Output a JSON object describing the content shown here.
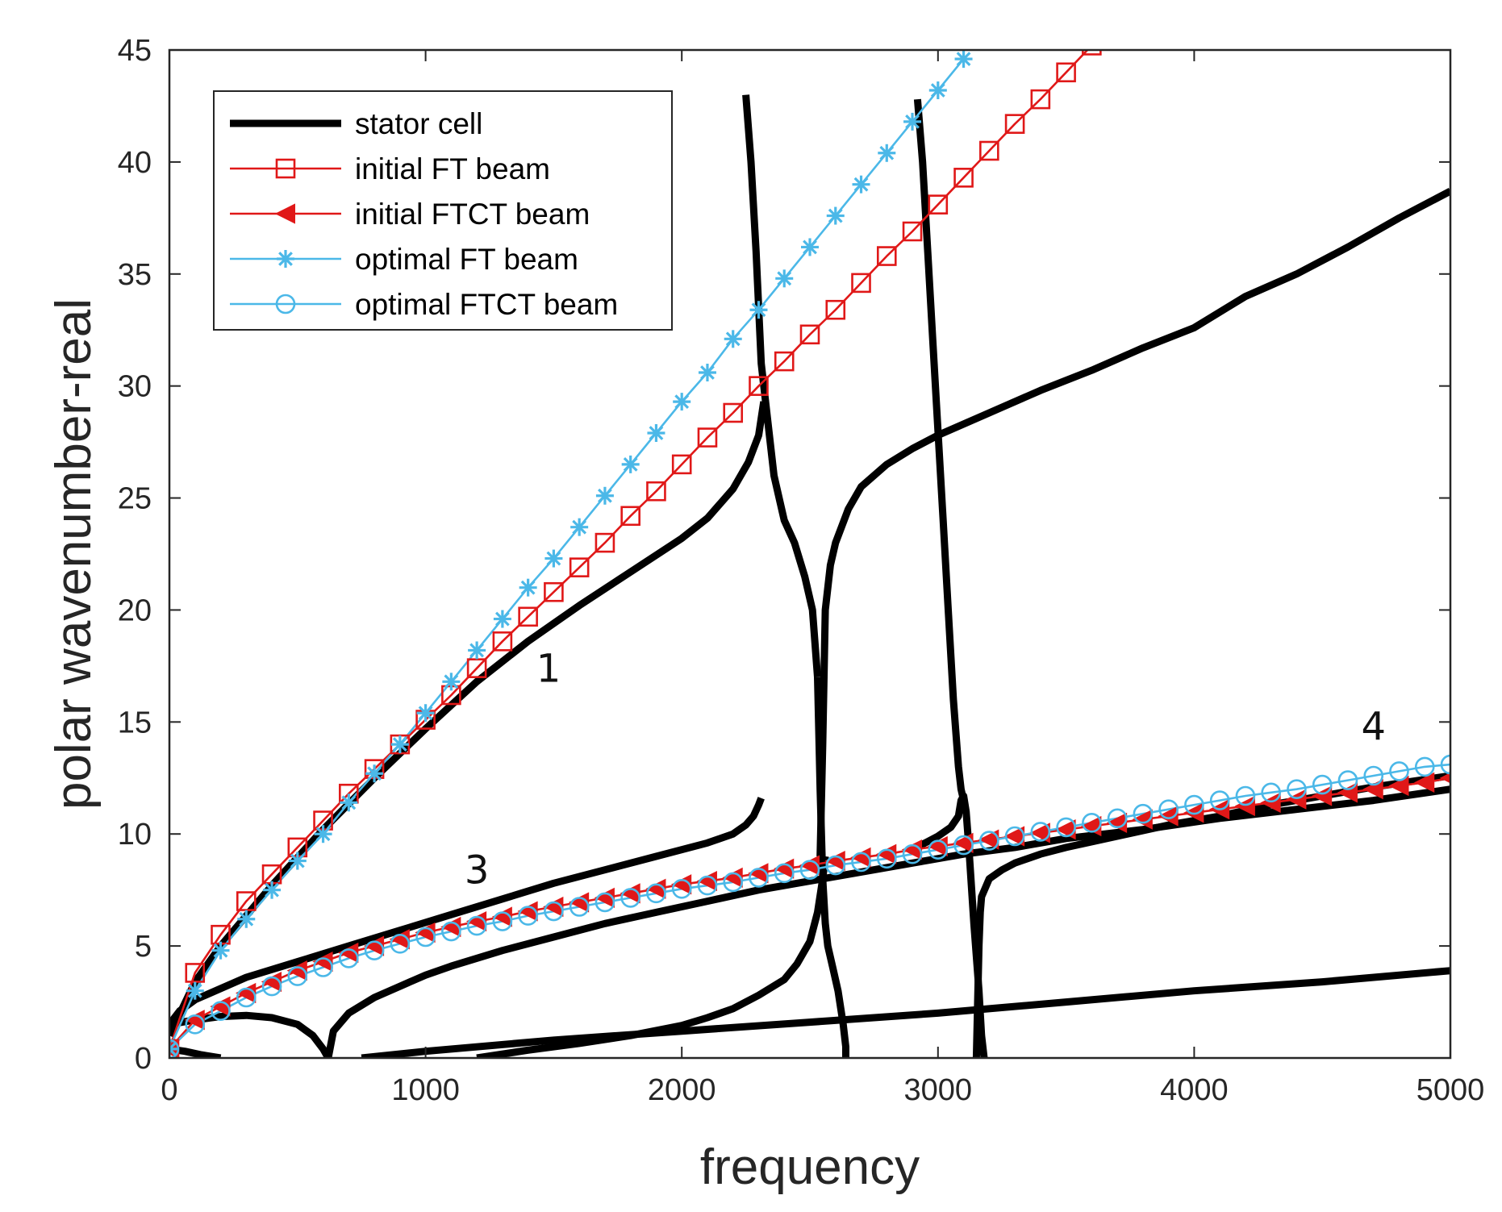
{
  "chart_data": {
    "type": "line",
    "title": "",
    "xlabel": "frequency",
    "ylabel": "polar wavenumber-real",
    "xlim": [
      0,
      5000
    ],
    "ylim": [
      0,
      45
    ],
    "xticks": [
      0,
      1000,
      2000,
      3000,
      4000,
      5000
    ],
    "yticks": [
      0,
      5,
      10,
      15,
      20,
      25,
      30,
      35,
      40,
      45
    ],
    "grid": false,
    "legend_position": "top-left",
    "colors": {
      "black": "#000000",
      "red": "#e01818",
      "blue": "#4bb8e8",
      "axis": "#262626"
    },
    "series": [
      {
        "name": "stator cell",
        "color": "#000000",
        "marker": "none",
        "branches": [
          {
            "x": [
              0,
              60,
              120,
              200
            ],
            "y": [
              0.4,
              0.3,
              0.15,
              0
            ]
          },
          {
            "x": [
              0,
              40,
              100,
              300,
              500,
              700,
              900,
              1100,
              1300,
              1500,
              1700,
              1900,
              2100,
              2200,
              2250,
              2280,
              2300,
              2310
            ],
            "y": [
              1.5,
              2.1,
              2.6,
              3.6,
              4.3,
              5.0,
              5.7,
              6.4,
              7.1,
              7.8,
              8.4,
              9.0,
              9.6,
              10.0,
              10.4,
              10.8,
              11.3,
              11.6
            ]
          },
          {
            "x": [
              0,
              100,
              200,
              300,
              400,
              500,
              560,
              600,
              620
            ],
            "y": [
              1.5,
              1.7,
              1.85,
              1.9,
              1.8,
              1.5,
              1.0,
              0.4,
              0
            ]
          },
          {
            "x": [
              620,
              640,
              700,
              800,
              900,
              1000,
              1100,
              1300,
              1500,
              1700,
              1900,
              2100,
              2300,
              2500,
              2700,
              2900,
              3100,
              3300,
              3500,
              3800,
              4100,
              4400,
              4700,
              5000
            ],
            "y": [
              0,
              1.2,
              2.0,
              2.7,
              3.2,
              3.7,
              4.1,
              4.8,
              5.4,
              6.0,
              6.5,
              7.0,
              7.5,
              7.9,
              8.3,
              8.7,
              9.1,
              9.4,
              9.8,
              10.2,
              10.7,
              11.1,
              11.5,
              12.0
            ]
          },
          {
            "x": [
              0,
              100,
              200,
              400,
              600,
              800,
              1000,
              1200,
              1400,
              1600,
              1800,
              2000,
              2100,
              2200,
              2260,
              2300,
              2320
            ],
            "y": [
              1.0,
              3.4,
              5.0,
              7.7,
              10.2,
              12.5,
              14.7,
              16.8,
              18.6,
              20.2,
              21.7,
              23.2,
              24.1,
              25.4,
              26.6,
              27.8,
              29.3
            ]
          },
          {
            "x": [
              2250,
              2270,
              2290,
              2310,
              2330,
              2360,
              2400,
              2440,
              2480,
              2510,
              2530
            ],
            "y": [
              43,
              40,
              36,
              31,
              29,
              26,
              24,
              23,
              21.5,
              20,
              17
            ]
          },
          {
            "x": [
              2530,
              2540,
              2550,
              2560,
              2570,
              2590,
              2610,
              2630,
              2640,
              2640
            ],
            "y": [
              17,
              12,
              8,
              6,
              5,
              4,
              3,
              1.5,
              0.5,
              0
            ]
          },
          {
            "x": [
              1200,
              1400,
              1600,
              1800,
              2000,
              2100,
              2200,
              2300,
              2400,
              2450,
              2500,
              2530,
              2550,
              2560
            ],
            "y": [
              0,
              0.35,
              0.65,
              1.0,
              1.45,
              1.8,
              2.2,
              2.8,
              3.5,
              4.2,
              5.2,
              6.5,
              8.0,
              9.0
            ]
          },
          {
            "x": [
              750,
              1000,
              1500,
              2000,
              2500,
              3000,
              3500,
              4000,
              4500,
              5000
            ],
            "y": [
              0,
              0.3,
              0.8,
              1.2,
              1.6,
              2.0,
              2.5,
              3.0,
              3.4,
              3.9
            ]
          },
          {
            "x": [
              2540,
              2550,
              2560,
              2580,
              2600,
              2650,
              2700,
              2800,
              2900,
              3000,
              3200,
              3400,
              3600,
              3800,
              4000,
              4200,
              4400,
              4600,
              4800,
              5000
            ],
            "y": [
              9,
              14,
              20,
              22,
              23,
              24.5,
              25.5,
              26.5,
              27.2,
              27.8,
              28.8,
              29.8,
              30.7,
              31.7,
              32.6,
              34.0,
              35.0,
              36.2,
              37.5,
              38.7
            ]
          },
          {
            "x": [
              2920,
              2940,
              2960,
              2980,
              3000,
              3020,
              3040,
              3060,
              3080,
              3090,
              3100
            ],
            "y": [
              42.8,
              40,
              36,
              32,
              28,
              24,
              20,
              16,
              13,
              12,
              11.5
            ]
          },
          {
            "x": [
              2900,
              2950,
              3000,
              3050,
              3080,
              3090,
              3100,
              3110,
              3120,
              3140,
              3160,
              3170,
              3180
            ],
            "y": [
              9.3,
              9.6,
              9.9,
              10.3,
              10.8,
              11.5,
              11.7,
              11.0,
              9.5,
              6.0,
              3.0,
              1.0,
              0
            ]
          },
          {
            "x": [
              3150,
              3155,
              3160,
              3165,
              3170,
              3200,
              3250,
              3300,
              3400,
              3500,
              3700,
              3900,
              4100,
              4300,
              4500,
              4700,
              5000
            ],
            "y": [
              0,
              2.5,
              5,
              6.5,
              7.2,
              8.0,
              8.4,
              8.7,
              9.1,
              9.4,
              9.9,
              10.4,
              10.8,
              11.3,
              11.7,
              12.1,
              12.6
            ]
          }
        ]
      },
      {
        "name": "initial FT beam",
        "color": "#e01818",
        "marker": "square",
        "x": [
          0,
          100,
          200,
          300,
          400,
          500,
          600,
          700,
          800,
          900,
          1000,
          1100,
          1200,
          1300,
          1400,
          1500,
          1600,
          1700,
          1800,
          1900,
          2000,
          2100,
          2200,
          2300,
          2400,
          2500,
          2600,
          2700,
          2800,
          2900,
          3000,
          3100,
          3200,
          3300,
          3400,
          3500,
          3600
        ],
        "y": [
          0.4,
          3.8,
          5.5,
          7.0,
          8.2,
          9.4,
          10.6,
          11.8,
          12.9,
          14.0,
          15.1,
          16.2,
          17.4,
          18.6,
          19.7,
          20.8,
          21.9,
          23.0,
          24.2,
          25.3,
          26.5,
          27.7,
          28.8,
          30.0,
          31.1,
          32.3,
          33.4,
          34.6,
          35.8,
          36.9,
          38.1,
          39.3,
          40.5,
          41.7,
          42.8,
          44.0,
          45.2
        ]
      },
      {
        "name": "initial FTCT beam",
        "color": "#e01818",
        "marker": "triangle-left",
        "x": [
          0,
          100,
          200,
          300,
          400,
          500,
          600,
          700,
          800,
          900,
          1000,
          1100,
          1200,
          1300,
          1400,
          1500,
          1600,
          1700,
          1800,
          1900,
          2000,
          2100,
          2200,
          2300,
          2400,
          2500,
          2600,
          2700,
          2800,
          2900,
          3000,
          3100,
          3200,
          3300,
          3400,
          3500,
          3600,
          3700,
          3800,
          3900,
          4000,
          4100,
          4200,
          4300,
          4400,
          4500,
          4600,
          4700,
          4800,
          4900,
          5000
        ],
        "y": [
          0.4,
          1.7,
          2.3,
          2.9,
          3.4,
          3.9,
          4.3,
          4.7,
          5.0,
          5.3,
          5.6,
          5.85,
          6.1,
          6.3,
          6.55,
          6.75,
          6.95,
          7.15,
          7.35,
          7.55,
          7.75,
          7.9,
          8.05,
          8.25,
          8.45,
          8.6,
          8.8,
          8.95,
          9.1,
          9.3,
          9.45,
          9.6,
          9.75,
          9.9,
          10.05,
          10.2,
          10.35,
          10.5,
          10.65,
          10.8,
          10.95,
          11.1,
          11.25,
          11.4,
          11.55,
          11.7,
          11.85,
          12.0,
          12.15,
          12.3,
          12.5
        ]
      },
      {
        "name": "optimal FT beam",
        "color": "#4bb8e8",
        "marker": "asterisk",
        "x": [
          0,
          100,
          200,
          300,
          400,
          500,
          600,
          700,
          800,
          900,
          1000,
          1100,
          1200,
          1300,
          1400,
          1500,
          1600,
          1700,
          1800,
          1900,
          2000,
          2100,
          2200,
          2300,
          2400,
          2500,
          2600,
          2700,
          2800,
          2900,
          3000,
          3100
        ],
        "y": [
          0.4,
          3.0,
          4.8,
          6.2,
          7.5,
          8.8,
          10.0,
          11.4,
          12.7,
          14.0,
          15.4,
          16.8,
          18.2,
          19.6,
          21.0,
          22.3,
          23.7,
          25.1,
          26.5,
          27.9,
          29.3,
          30.6,
          32.1,
          33.4,
          34.8,
          36.2,
          37.6,
          39.0,
          40.4,
          41.8,
          43.2,
          44.6
        ]
      },
      {
        "name": "optimal FTCT beam",
        "color": "#4bb8e8",
        "marker": "circle",
        "x": [
          0,
          100,
          200,
          300,
          400,
          500,
          600,
          700,
          800,
          900,
          1000,
          1100,
          1200,
          1300,
          1400,
          1500,
          1600,
          1700,
          1800,
          1900,
          2000,
          2100,
          2200,
          2300,
          2400,
          2500,
          2600,
          2700,
          2800,
          2900,
          3000,
          3100,
          3200,
          3300,
          3400,
          3500,
          3600,
          3700,
          3800,
          3900,
          4000,
          4100,
          4200,
          4300,
          4400,
          4500,
          4600,
          4700,
          4800,
          4900,
          5000
        ],
        "y": [
          0.4,
          1.5,
          2.1,
          2.7,
          3.2,
          3.65,
          4.05,
          4.45,
          4.8,
          5.1,
          5.4,
          5.65,
          5.9,
          6.1,
          6.35,
          6.55,
          6.75,
          6.95,
          7.15,
          7.35,
          7.55,
          7.7,
          7.85,
          8.05,
          8.25,
          8.4,
          8.6,
          8.75,
          8.9,
          9.1,
          9.3,
          9.5,
          9.7,
          9.9,
          10.1,
          10.3,
          10.5,
          10.7,
          10.9,
          11.1,
          11.3,
          11.5,
          11.7,
          11.85,
          12.0,
          12.2,
          12.4,
          12.6,
          12.8,
          13.0,
          13.1
        ]
      }
    ],
    "annotations": [
      {
        "text": "1",
        "x": 1480,
        "y": 16.8
      },
      {
        "text": "3",
        "x": 1200,
        "y": 7.8
      },
      {
        "text": "4",
        "x": 4700,
        "y": 14.2
      }
    ]
  }
}
